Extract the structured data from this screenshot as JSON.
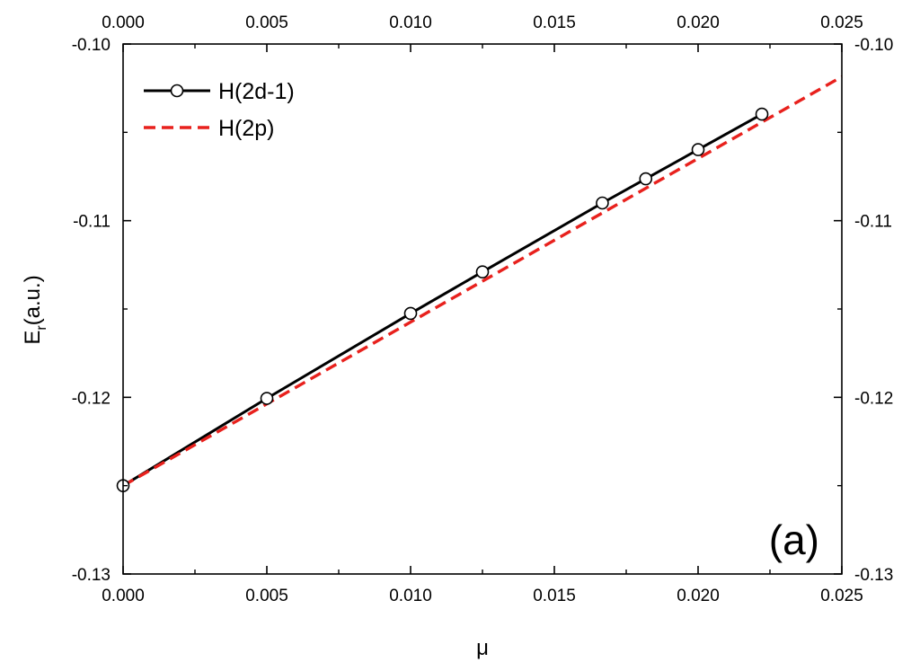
{
  "chart_data": {
    "type": "line",
    "xlabel": "μ",
    "ylabel_main": "E",
    "ylabel_sub": "r",
    "ylabel_tail": "(a.u.)",
    "panel_label": "(a)",
    "xlim": [
      0.0,
      0.025
    ],
    "ylim": [
      -0.13,
      -0.1
    ],
    "x_ticks": [
      "0.000",
      "0.005",
      "0.010",
      "0.015",
      "0.020",
      "0.025"
    ],
    "y_ticks": [
      "-0.10",
      "-0.11",
      "-0.12",
      "-0.13"
    ],
    "legend_position": "top-left",
    "series": [
      {
        "name": "H(2d-1)",
        "style": "solid line with open circle markers",
        "color": "#000000",
        "x": [
          0.0,
          0.005,
          0.01,
          0.0125,
          0.01667,
          0.01818,
          0.02,
          0.02222
        ],
        "y": [
          -0.125,
          -0.12006,
          -0.11525,
          -0.1129,
          -0.109,
          -0.10763,
          -0.10598,
          -0.10397
        ]
      },
      {
        "name": "H(2p)",
        "style": "dashed line",
        "color": "#e8211d",
        "x": [
          0.0,
          0.025
        ],
        "y": [
          -0.125,
          -0.10185
        ]
      }
    ]
  }
}
